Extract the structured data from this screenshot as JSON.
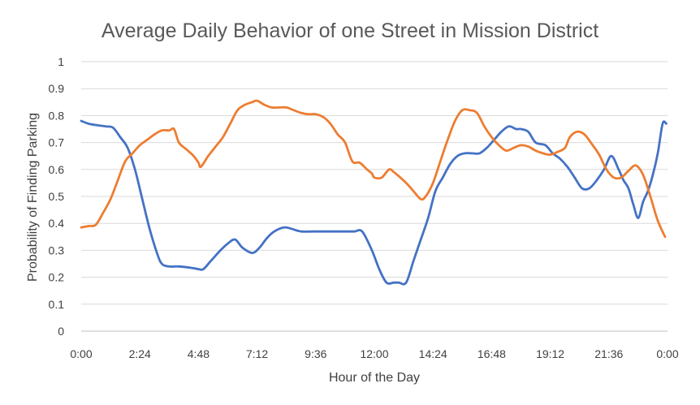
{
  "chart_data": {
    "type": "line",
    "title": "Average Daily Behavior of one Street in Mission District",
    "xlabel": "Hour of the Day",
    "ylabel": "Probability of Finding Parking",
    "x_ticks": [
      "0:00",
      "2:24",
      "4:48",
      "7:12",
      "9:36",
      "12:00",
      "14:24",
      "16:48",
      "19:12",
      "21:36",
      "0:00"
    ],
    "y_ticks": [
      "0",
      "0.1",
      "0.2",
      "0.3",
      "0.4",
      "0.5",
      "0.6",
      "0.7",
      "0.8",
      "0.9",
      "1"
    ],
    "xlim": [
      0,
      24
    ],
    "ylim": [
      0,
      1
    ],
    "grid": true,
    "legend": "none",
    "colors": {
      "series_1": "#4472C4",
      "series_2": "#ED7D31"
    },
    "series": [
      {
        "x": [
          0.0,
          0.3,
          0.6,
          1.0,
          1.3,
          1.6,
          1.9,
          2.2,
          2.5,
          2.8,
          3.1,
          3.3,
          3.6,
          4.0,
          4.5,
          4.8,
          5.0,
          5.3,
          5.7,
          6.0,
          6.3,
          6.6,
          7.0,
          7.3,
          7.6,
          7.9,
          8.3,
          8.6,
          9.0,
          9.5,
          10.0,
          10.5,
          11.0,
          11.2,
          11.5,
          11.9,
          12.2,
          12.5,
          12.8,
          13.0,
          13.3,
          13.6,
          13.9,
          14.2,
          14.5,
          14.8,
          15.1,
          15.4,
          15.7,
          16.0,
          16.3,
          16.6,
          16.9,
          17.2,
          17.5,
          17.8,
          18.0,
          18.3,
          18.6,
          19.0,
          19.3,
          19.6,
          19.9,
          20.2,
          20.5,
          20.8,
          21.1,
          21.4,
          21.7,
          22.0,
          22.2,
          22.4,
          22.6,
          22.8,
          23.0,
          23.2,
          23.4,
          23.6,
          23.8,
          23.95
        ],
        "values": [
          0.78,
          0.77,
          0.765,
          0.76,
          0.755,
          0.72,
          0.68,
          0.6,
          0.49,
          0.38,
          0.29,
          0.25,
          0.24,
          0.24,
          0.235,
          0.23,
          0.23,
          0.26,
          0.3,
          0.325,
          0.34,
          0.31,
          0.29,
          0.31,
          0.345,
          0.37,
          0.385,
          0.38,
          0.37,
          0.37,
          0.37,
          0.37,
          0.37,
          0.37,
          0.37,
          0.3,
          0.23,
          0.18,
          0.18,
          0.18,
          0.18,
          0.26,
          0.34,
          0.42,
          0.52,
          0.57,
          0.62,
          0.65,
          0.66,
          0.66,
          0.66,
          0.68,
          0.71,
          0.74,
          0.76,
          0.75,
          0.75,
          0.74,
          0.7,
          0.69,
          0.66,
          0.64,
          0.61,
          0.57,
          0.53,
          0.53,
          0.56,
          0.6,
          0.65,
          0.6,
          0.56,
          0.53,
          0.47,
          0.42,
          0.48,
          0.52,
          0.58,
          0.66,
          0.77,
          0.77
        ]
      },
      {
        "x": [
          0.0,
          0.3,
          0.6,
          0.9,
          1.2,
          1.5,
          1.8,
          2.1,
          2.4,
          2.7,
          3.0,
          3.3,
          3.6,
          3.8,
          4.0,
          4.3,
          4.6,
          4.8,
          4.9,
          5.2,
          5.5,
          5.8,
          6.1,
          6.4,
          6.7,
          7.0,
          7.2,
          7.5,
          7.8,
          8.1,
          8.4,
          8.7,
          9.0,
          9.3,
          9.6,
          9.9,
          10.2,
          10.5,
          10.8,
          11.1,
          11.4,
          11.7,
          11.9,
          12.0,
          12.3,
          12.6,
          12.8,
          13.0,
          13.3,
          13.6,
          13.9,
          14.1,
          14.4,
          14.7,
          15.0,
          15.3,
          15.6,
          15.9,
          16.2,
          16.5,
          16.8,
          17.1,
          17.4,
          17.7,
          18.0,
          18.3,
          18.6,
          18.9,
          19.2,
          19.5,
          19.8,
          20.0,
          20.3,
          20.6,
          20.9,
          21.2,
          21.5,
          21.8,
          22.1,
          22.4,
          22.7,
          23.0,
          23.3,
          23.6,
          23.9
        ],
        "values": [
          0.385,
          0.39,
          0.395,
          0.44,
          0.49,
          0.56,
          0.63,
          0.66,
          0.69,
          0.71,
          0.73,
          0.745,
          0.745,
          0.75,
          0.7,
          0.675,
          0.65,
          0.625,
          0.61,
          0.65,
          0.685,
          0.72,
          0.77,
          0.82,
          0.84,
          0.85,
          0.855,
          0.84,
          0.83,
          0.83,
          0.83,
          0.82,
          0.81,
          0.805,
          0.805,
          0.795,
          0.77,
          0.73,
          0.7,
          0.63,
          0.625,
          0.6,
          0.585,
          0.57,
          0.57,
          0.6,
          0.59,
          0.575,
          0.55,
          0.52,
          0.49,
          0.5,
          0.55,
          0.63,
          0.71,
          0.78,
          0.82,
          0.82,
          0.81,
          0.76,
          0.72,
          0.69,
          0.67,
          0.68,
          0.69,
          0.685,
          0.67,
          0.66,
          0.655,
          0.665,
          0.68,
          0.72,
          0.74,
          0.73,
          0.695,
          0.655,
          0.6,
          0.57,
          0.57,
          0.595,
          0.615,
          0.58,
          0.5,
          0.41,
          0.35
        ]
      }
    ]
  }
}
